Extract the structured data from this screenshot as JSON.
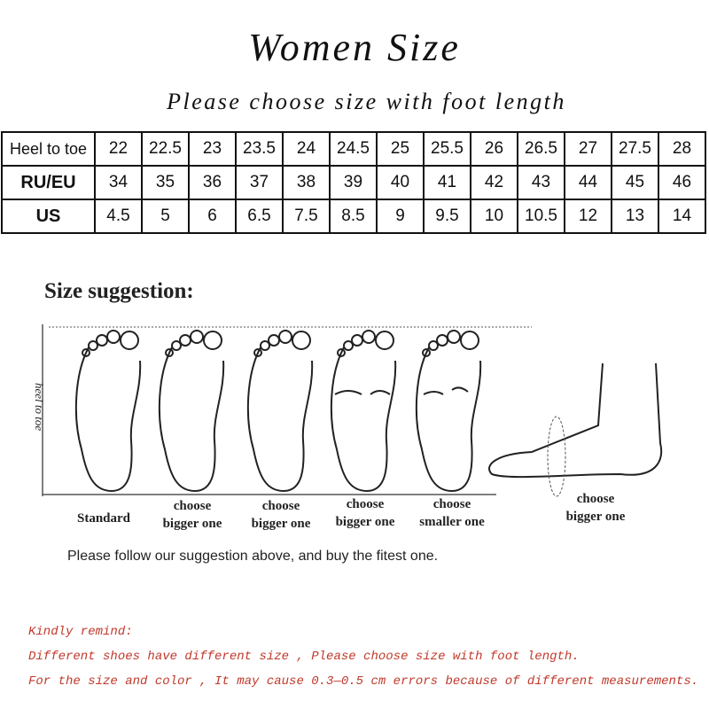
{
  "header": {
    "title": "Women Size",
    "subtitle": "Please choose size with foot length"
  },
  "table": {
    "rows": [
      [
        "Heel to toe",
        "22",
        "22.5",
        "23",
        "23.5",
        "24",
        "24.5",
        "25",
        "25.5",
        "26",
        "26.5",
        "27",
        "27.5",
        "28"
      ],
      [
        "RU/EU",
        "34",
        "35",
        "36",
        "37",
        "38",
        "39",
        "40",
        "41",
        "42",
        "43",
        "44",
        "45",
        "46"
      ],
      [
        "US",
        "4.5",
        "5",
        "6",
        "6.5",
        "7.5",
        "8.5",
        "9",
        "9.5",
        "10",
        "10.5",
        "12",
        "13",
        "14"
      ]
    ]
  },
  "suggestion": {
    "title": "Size suggestion:",
    "axis_label": "heel to toe",
    "labels": [
      [
        "Standard"
      ],
      [
        "choose",
        "bigger one"
      ],
      [
        "choose",
        "bigger one"
      ],
      [
        "choose",
        "bigger one"
      ],
      [
        "choose",
        "smaller one"
      ],
      [
        "choose",
        "bigger one"
      ]
    ],
    "advice": "Please follow our suggestion above, and buy the fitest one."
  },
  "notes": [
    "Kindly remind:",
    "Different shoes have different size , Please choose size with foot length.",
    "For the size and color , It may cause 0.3—0.5 cm errors because of different measurements."
  ]
}
